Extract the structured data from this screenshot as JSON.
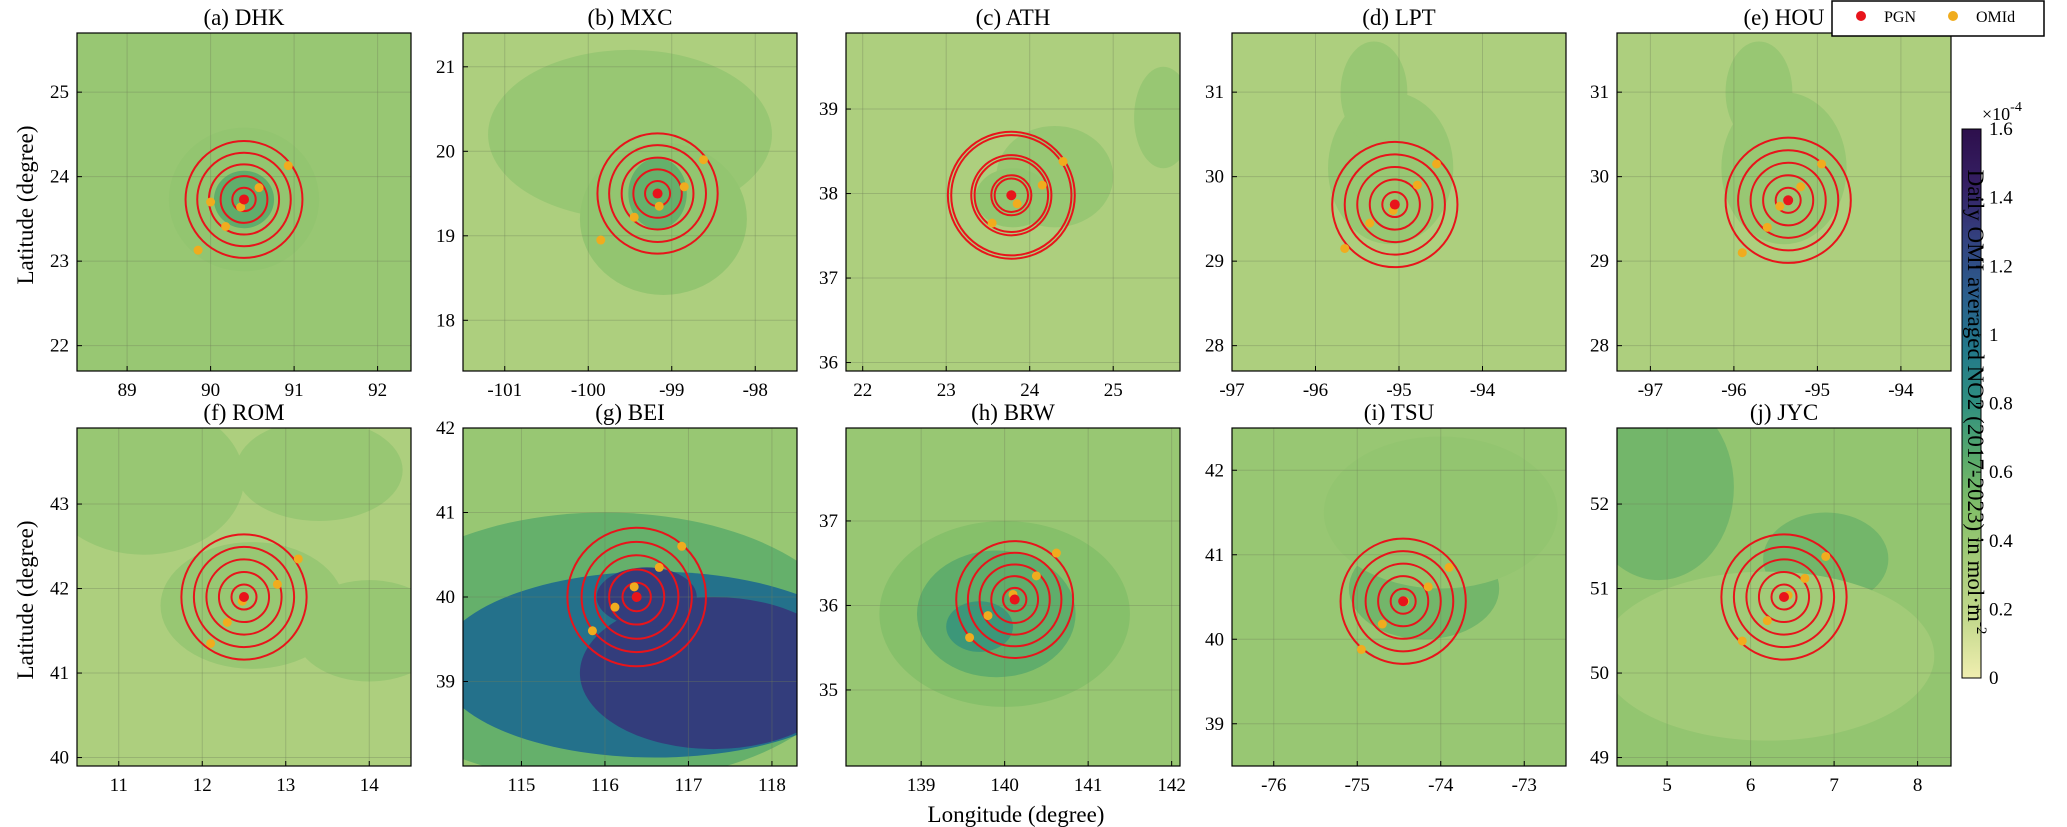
{
  "chart_data": {
    "type": "contour-map-grid",
    "xlabel": "Longitude (degree)",
    "ylabel": "Latitude (degree)",
    "legend": {
      "placement": "top-right",
      "entries": [
        {
          "label": "PGN",
          "color": "#e8141b"
        },
        {
          "label": "OMId",
          "color": "#f0ac1e"
        }
      ]
    },
    "colorbar": {
      "label": "Daily OMI averaged NO2 (2017-2023) in mol·m",
      "label_sup": "-2",
      "exponent_base": "×10",
      "exponent_power": "-4",
      "range": [
        0,
        1.6
      ],
      "ticks": [
        "0",
        "0.2",
        "0.4",
        "0.6",
        "0.8",
        "1",
        "1.2",
        "1.4",
        "1.6"
      ],
      "colormap": [
        "#f0eeb0",
        "#c6da8f",
        "#a9cd7b",
        "#86c06a",
        "#5aaa6b",
        "#2f8f80",
        "#22788a",
        "#2b5d8c",
        "#33417f",
        "#351f63",
        "#2d0f4c"
      ]
    },
    "panels": [
      {
        "title": "(a) DHK",
        "xlim": [
          88.4,
          92.4
        ],
        "ylim": [
          21.7,
          25.7
        ],
        "xticks": [
          89,
          90,
          91,
          92
        ],
        "xtick_labels": [
          "89",
          "90",
          "91",
          "92"
        ],
        "yticks": [
          22,
          23,
          24,
          25
        ],
        "ytick_labels": [
          "22",
          "23",
          "24",
          "25"
        ],
        "pgn": [
          90.4,
          23.73
        ],
        "omid": [
          [
            90.36,
            23.64
          ],
          [
            90.58,
            23.87
          ],
          [
            90.93,
            24.13
          ],
          [
            90.18,
            23.41
          ],
          [
            89.85,
            23.13
          ],
          [
            90.0,
            23.7
          ]
        ],
        "rings_deg": [
          0.14,
          0.28,
          0.42,
          0.56,
          0.7
        ],
        "base_level": 0.4,
        "blobs": [
          {
            "x": 90.4,
            "y": 23.73,
            "rx": 0.9,
            "ry": 0.85,
            "level": 0.42
          },
          {
            "x": 90.4,
            "y": 23.73,
            "rx": 0.36,
            "ry": 0.34,
            "level": 0.62
          }
        ]
      },
      {
        "title": "(b) MXC",
        "xlim": [
          -101.5,
          -97.5
        ],
        "ylim": [
          17.4,
          21.4
        ],
        "xticks": [
          -101,
          -100,
          -99,
          -98
        ],
        "xtick_labels": [
          "-101",
          "-100",
          "-99",
          "-98"
        ],
        "yticks": [
          18,
          19,
          20,
          21
        ],
        "ytick_labels": [
          "18",
          "19",
          "20",
          "21"
        ],
        "pgn": [
          -99.17,
          19.5
        ],
        "omid": [
          [
            -99.15,
            19.35
          ],
          [
            -98.85,
            19.58
          ],
          [
            -98.62,
            19.9
          ],
          [
            -99.45,
            19.22
          ],
          [
            -99.85,
            18.95
          ]
        ],
        "rings_deg": [
          0.15,
          0.29,
          0.43,
          0.58,
          0.72
        ],
        "base_level": 0.3,
        "blobs": [
          {
            "x": -99.5,
            "y": 20.2,
            "rx": 1.7,
            "ry": 1.0,
            "level": 0.4
          },
          {
            "x": -99.1,
            "y": 19.2,
            "rx": 1.0,
            "ry": 0.9,
            "level": 0.42
          },
          {
            "x": -99.17,
            "y": 19.5,
            "rx": 0.35,
            "ry": 0.42,
            "level": 0.6
          }
        ]
      },
      {
        "title": "(c) ATH",
        "xlim": [
          21.8,
          25.8
        ],
        "ylim": [
          35.9,
          39.9
        ],
        "xticks": [
          22,
          23,
          24,
          25
        ],
        "xtick_labels": [
          "22",
          "23",
          "24",
          "25"
        ],
        "yticks": [
          36,
          37,
          38,
          39
        ],
        "ytick_labels": [
          "36",
          "37",
          "38",
          "39"
        ],
        "pgn": [
          23.78,
          37.98
        ],
        "omid": [
          [
            23.85,
            37.88
          ],
          [
            24.15,
            38.1
          ],
          [
            24.4,
            38.38
          ],
          [
            23.55,
            37.65
          ]
        ],
        "rings_deg": [
          0.2,
          0.24,
          0.44,
          0.48,
          0.72,
          0.76
        ],
        "base_level": 0.3,
        "blobs": [
          {
            "x": 24.3,
            "y": 38.2,
            "rx": 0.7,
            "ry": 0.6,
            "level": 0.4
          },
          {
            "x": 23.8,
            "y": 37.95,
            "rx": 0.45,
            "ry": 0.35,
            "level": 0.42
          },
          {
            "x": 25.6,
            "y": 38.9,
            "rx": 0.35,
            "ry": 0.6,
            "level": 0.4
          }
        ]
      },
      {
        "title": "(d) LPT",
        "xlim": [
          -97.0,
          -93.0
        ],
        "ylim": [
          27.7,
          31.7
        ],
        "xticks": [
          -97,
          -96,
          -95,
          -94
        ],
        "xtick_labels": [
          "-97",
          "-96",
          "-95",
          "-94"
        ],
        "yticks": [
          28,
          29,
          30,
          31
        ],
        "ytick_labels": [
          "28",
          "29",
          "30",
          "31"
        ],
        "pgn": [
          -95.05,
          29.67
        ],
        "omid": [
          [
            -95.07,
            29.6
          ],
          [
            -94.78,
            29.9
          ],
          [
            -94.55,
            30.15
          ],
          [
            -95.35,
            29.45
          ],
          [
            -95.65,
            29.15
          ]
        ],
        "rings_deg": [
          0.15,
          0.3,
          0.45,
          0.6,
          0.75
        ],
        "base_level": 0.3,
        "blobs": [
          {
            "x": -95.1,
            "y": 30.1,
            "rx": 0.75,
            "ry": 0.9,
            "level": 0.4
          },
          {
            "x": -95.3,
            "y": 31.0,
            "rx": 0.4,
            "ry": 0.6,
            "level": 0.4
          }
        ]
      },
      {
        "title": "(e) HOU",
        "xlim": [
          -97.4,
          -93.4
        ],
        "ylim": [
          27.7,
          31.7
        ],
        "xticks": [
          -97,
          -96,
          -95,
          -94
        ],
        "xtick_labels": [
          "-97",
          "-96",
          "-95",
          "-94"
        ],
        "yticks": [
          28,
          29,
          30,
          31
        ],
        "ytick_labels": [
          "28",
          "29",
          "30",
          "31"
        ],
        "pgn": [
          -95.35,
          29.72
        ],
        "omid": [
          [
            -95.45,
            29.65
          ],
          [
            -95.2,
            29.88
          ],
          [
            -94.95,
            30.15
          ],
          [
            -95.6,
            29.4
          ],
          [
            -95.9,
            29.1
          ]
        ],
        "rings_deg": [
          0.15,
          0.3,
          0.45,
          0.6,
          0.75
        ],
        "base_level": 0.3,
        "blobs": [
          {
            "x": -95.4,
            "y": 30.1,
            "rx": 0.75,
            "ry": 0.9,
            "level": 0.4
          },
          {
            "x": -95.7,
            "y": 31.0,
            "rx": 0.4,
            "ry": 0.6,
            "level": 0.4
          }
        ]
      },
      {
        "title": "(f) ROM",
        "xlim": [
          10.5,
          14.5
        ],
        "ylim": [
          39.9,
          43.9
        ],
        "xticks": [
          11,
          12,
          13,
          14
        ],
        "xtick_labels": [
          "11",
          "12",
          "13",
          "14"
        ],
        "yticks": [
          40,
          41,
          42,
          43
        ],
        "ytick_labels": [
          "40",
          "41",
          "42",
          "43"
        ],
        "pgn": [
          12.5,
          41.9
        ],
        "omid": [
          [
            12.48,
            41.85
          ],
          [
            12.9,
            42.05
          ],
          [
            13.15,
            42.35
          ],
          [
            12.3,
            41.6
          ],
          [
            12.1,
            41.35
          ]
        ],
        "rings_deg": [
          0.15,
          0.3,
          0.45,
          0.6,
          0.75
        ],
        "base_level": 0.3,
        "blobs": [
          {
            "x": 11.3,
            "y": 43.3,
            "rx": 1.2,
            "ry": 0.9,
            "level": 0.4
          },
          {
            "x": 12.6,
            "y": 41.8,
            "rx": 1.1,
            "ry": 0.75,
            "level": 0.4
          },
          {
            "x": 14.0,
            "y": 41.5,
            "rx": 0.9,
            "ry": 0.6,
            "level": 0.4
          },
          {
            "x": 13.4,
            "y": 43.4,
            "rx": 1.0,
            "ry": 0.6,
            "level": 0.4
          }
        ]
      },
      {
        "title": "(g) BEI",
        "xlim": [
          114.3,
          118.3
        ],
        "ylim": [
          38.0,
          42.0
        ],
        "xticks": [
          115,
          116,
          117,
          118
        ],
        "xtick_labels": [
          "115",
          "116",
          "117",
          "118"
        ],
        "yticks": [
          39,
          40,
          41,
          42
        ],
        "ytick_labels": [
          "39",
          "40",
          "41",
          "42"
        ],
        "pgn": [
          116.38,
          40.0
        ],
        "omid": [
          [
            116.35,
            40.12
          ],
          [
            116.65,
            40.35
          ],
          [
            116.92,
            40.6
          ],
          [
            116.12,
            39.88
          ],
          [
            115.85,
            39.6
          ]
        ],
        "rings_deg": [
          0.17,
          0.33,
          0.5,
          0.66,
          0.83
        ],
        "base_level": 0.4,
        "blobs": [
          {
            "x": 116.0,
            "y": 39.4,
            "rx": 3.0,
            "ry": 1.6,
            "level": 0.6
          },
          {
            "x": 116.6,
            "y": 39.2,
            "rx": 2.6,
            "ry": 1.1,
            "level": 1.0
          },
          {
            "x": 117.3,
            "y": 39.1,
            "rx": 1.6,
            "ry": 0.9,
            "level": 1.3
          },
          {
            "x": 116.5,
            "y": 40.0,
            "rx": 0.6,
            "ry": 0.35,
            "level": 1.3
          }
        ]
      },
      {
        "title": "(h) BRW",
        "xlim": [
          138.1,
          142.1
        ],
        "ylim": [
          34.1,
          38.1
        ],
        "xticks": [
          139,
          140,
          141,
          142
        ],
        "xtick_labels": [
          "139",
          "140",
          "141",
          "142"
        ],
        "yticks": [
          35,
          36,
          37
        ],
        "ytick_labels": [
          "35",
          "36",
          "37"
        ],
        "pgn": [
          140.12,
          36.07
        ],
        "omid": [
          [
            140.1,
            36.13
          ],
          [
            140.38,
            36.35
          ],
          [
            140.62,
            36.62
          ],
          [
            139.8,
            35.88
          ],
          [
            139.58,
            35.62
          ]
        ],
        "rings_deg": [
          0.14,
          0.28,
          0.42,
          0.56,
          0.7
        ],
        "base_level": 0.4,
        "blobs": [
          {
            "x": 140.0,
            "y": 35.9,
            "rx": 1.5,
            "ry": 1.1,
            "level": 0.48
          },
          {
            "x": 139.9,
            "y": 35.9,
            "rx": 0.95,
            "ry": 0.75,
            "level": 0.62
          },
          {
            "x": 139.7,
            "y": 35.75,
            "rx": 0.4,
            "ry": 0.3,
            "level": 0.75
          }
        ]
      },
      {
        "title": "(i) TSU",
        "xlim": [
          -76.5,
          -72.5
        ],
        "ylim": [
          38.5,
          42.5
        ],
        "xticks": [
          -76,
          -75,
          -74,
          -73
        ],
        "xtick_labels": [
          "-76",
          "-75",
          "-74",
          "-73"
        ],
        "yticks": [
          39,
          40,
          41,
          42
        ],
        "ytick_labels": [
          "39",
          "40",
          "41",
          "42"
        ],
        "pgn": [
          -74.45,
          40.45
        ],
        "omid": [
          [
            -74.43,
            40.45
          ],
          [
            -74.15,
            40.62
          ],
          [
            -73.9,
            40.85
          ],
          [
            -74.7,
            40.18
          ],
          [
            -74.95,
            39.88
          ]
        ],
        "rings_deg": [
          0.15,
          0.3,
          0.45,
          0.6,
          0.75
        ],
        "base_level": 0.4,
        "blobs": [
          {
            "x": -74.2,
            "y": 40.6,
            "rx": 0.9,
            "ry": 0.6,
            "level": 0.55
          },
          {
            "x": -74.0,
            "y": 41.5,
            "rx": 1.4,
            "ry": 0.9,
            "level": 0.42
          }
        ]
      },
      {
        "title": "(j) JYC",
        "xlim": [
          4.4,
          8.4
        ],
        "ylim": [
          48.9,
          52.9
        ],
        "xticks": [
          5,
          6,
          7,
          8
        ],
        "xtick_labels": [
          "5",
          "6",
          "7",
          "8"
        ],
        "yticks": [
          49,
          50,
          51,
          52
        ],
        "ytick_labels": [
          "49",
          "50",
          "51",
          "52"
        ],
        "pgn": [
          6.4,
          50.9
        ],
        "omid": [
          [
            6.45,
            50.92
          ],
          [
            6.65,
            51.12
          ],
          [
            6.9,
            51.38
          ],
          [
            6.2,
            50.62
          ],
          [
            5.9,
            50.38
          ]
        ],
        "rings_deg": [
          0.15,
          0.3,
          0.45,
          0.6,
          0.75
        ],
        "base_level": 0.42,
        "blobs": [
          {
            "x": 4.9,
            "y": 52.2,
            "rx": 0.9,
            "ry": 1.1,
            "level": 0.55
          },
          {
            "x": 6.9,
            "y": 51.35,
            "rx": 0.75,
            "ry": 0.55,
            "level": 0.55
          },
          {
            "x": 6.2,
            "y": 50.2,
            "rx": 2.0,
            "ry": 1.0,
            "level": 0.35
          }
        ]
      }
    ]
  }
}
